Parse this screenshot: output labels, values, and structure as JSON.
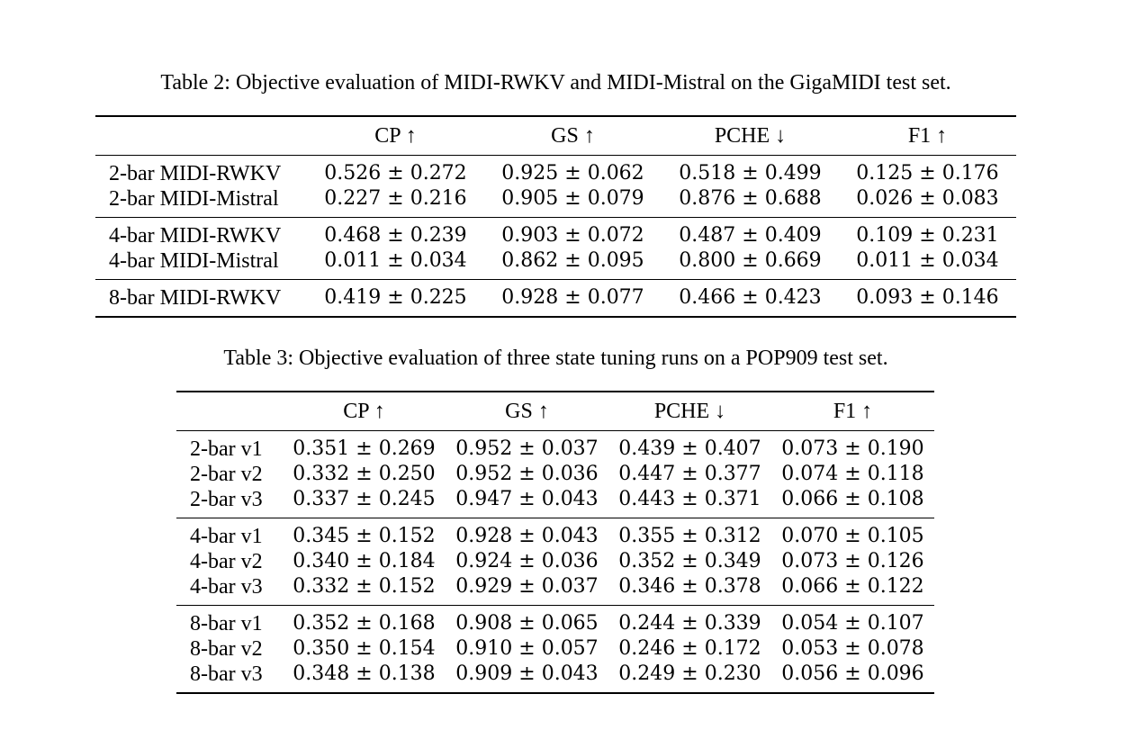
{
  "table2": {
    "caption": "Table 2: Objective evaluation of MIDI-RWKV and MIDI-Mistral on the GigaMIDI test set.",
    "headers": [
      "",
      "CP ↑",
      "GS ↑",
      "PCHE ↓",
      "F1 ↑"
    ],
    "rows": [
      {
        "name": "2-bar MIDI-RWKV",
        "cp": "0.526 ± 0.272",
        "gs": "0.925 ± 0.062",
        "pche": "0.518 ± 0.499",
        "f1": "0.125 ± 0.176"
      },
      {
        "name": "2-bar MIDI-Mistral",
        "cp": "0.227 ± 0.216",
        "gs": "0.905 ± 0.079",
        "pche": "0.876 ± 0.688",
        "f1": "0.026 ± 0.083"
      },
      {
        "name": "4-bar MIDI-RWKV",
        "cp": "0.468 ± 0.239",
        "gs": "0.903 ± 0.072",
        "pche": "0.487 ± 0.409",
        "f1": "0.109 ± 0.231"
      },
      {
        "name": "4-bar MIDI-Mistral",
        "cp": "0.011 ± 0.034",
        "gs": "0.862 ± 0.095",
        "pche": "0.800 ± 0.669",
        "f1": "0.011 ± 0.034"
      },
      {
        "name": "8-bar MIDI-RWKV",
        "cp": "0.419 ± 0.225",
        "gs": "0.928 ± 0.077",
        "pche": "0.466 ± 0.423",
        "f1": "0.093 ± 0.146"
      }
    ]
  },
  "table3": {
    "caption": "Table 3: Objective evaluation of three state tuning runs on a POP909 test set.",
    "headers": [
      "",
      "CP ↑",
      "GS ↑",
      "PCHE ↓",
      "F1 ↑"
    ],
    "rows": [
      {
        "name": "2-bar v1",
        "cp": "0.351 ± 0.269",
        "gs": "0.952 ± 0.037",
        "pche": "0.439 ± 0.407",
        "f1": "0.073 ± 0.190"
      },
      {
        "name": "2-bar v2",
        "cp": "0.332 ± 0.250",
        "gs": "0.952 ± 0.036",
        "pche": "0.447 ± 0.377",
        "f1": "0.074 ± 0.118"
      },
      {
        "name": "2-bar v3",
        "cp": "0.337 ± 0.245",
        "gs": "0.947 ± 0.043",
        "pche": "0.443 ± 0.371",
        "f1": "0.066 ± 0.108"
      },
      {
        "name": "4-bar v1",
        "cp": "0.345 ± 0.152",
        "gs": "0.928 ± 0.043",
        "pche": "0.355 ± 0.312",
        "f1": "0.070 ± 0.105"
      },
      {
        "name": "4-bar v2",
        "cp": "0.340 ± 0.184",
        "gs": "0.924 ± 0.036",
        "pche": "0.352 ± 0.349",
        "f1": "0.073 ± 0.126"
      },
      {
        "name": "4-bar v3",
        "cp": "0.332 ± 0.152",
        "gs": "0.929 ± 0.037",
        "pche": "0.346 ± 0.378",
        "f1": "0.066 ± 0.122"
      },
      {
        "name": "8-bar v1",
        "cp": "0.352 ± 0.168",
        "gs": "0.908 ± 0.065",
        "pche": "0.244 ± 0.339",
        "f1": "0.054 ± 0.107"
      },
      {
        "name": "8-bar v2",
        "cp": "0.350 ± 0.154",
        "gs": "0.910 ± 0.057",
        "pche": "0.246 ± 0.172",
        "f1": "0.053 ± 0.078"
      },
      {
        "name": "8-bar v3",
        "cp": "0.348 ± 0.138",
        "gs": "0.909 ± 0.043",
        "pche": "0.249 ± 0.230",
        "f1": "0.056 ± 0.096"
      }
    ]
  }
}
